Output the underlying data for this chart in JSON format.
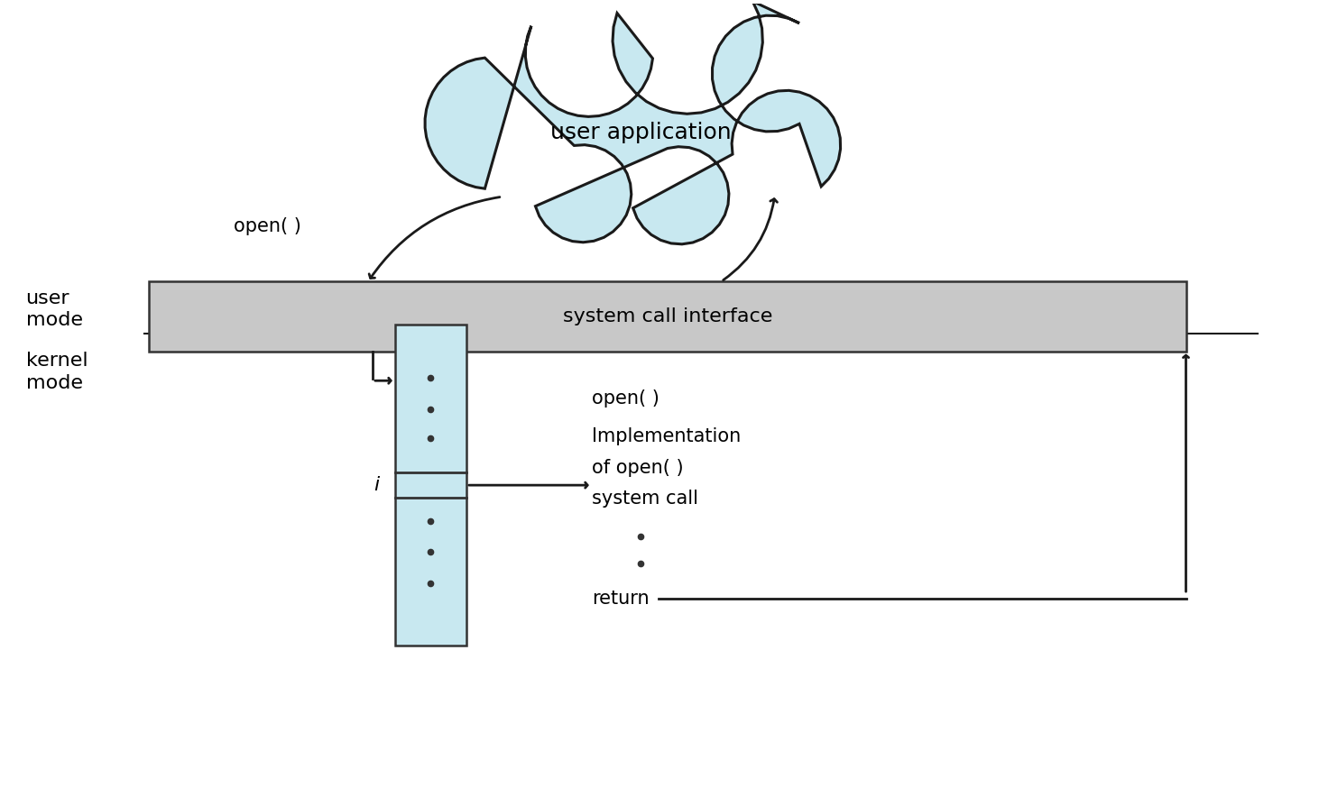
{
  "bg_color": "#ffffff",
  "cloud_color": "#c8e8f0",
  "cloud_edge_color": "#1a1a1a",
  "cloud_text": "user application",
  "syscall_box_color": "#c8c8c8",
  "syscall_box_edge": "#333333",
  "syscall_text": "system call interface",
  "table_color": "#c8e8f0",
  "table_edge": "#333333",
  "user_mode_label": "user\nmode",
  "kernel_mode_label": "kernel\nmode",
  "open_label_left": "open( )",
  "open_label_right": "open( )",
  "impl_label": [
    "Implementation",
    "of open( )",
    "system call"
  ],
  "return_label": "return",
  "i_label": "i",
  "font_size_main": 16,
  "font_size_labels": 15,
  "line_color": "#1a1a1a",
  "line_color_light": "#555555"
}
